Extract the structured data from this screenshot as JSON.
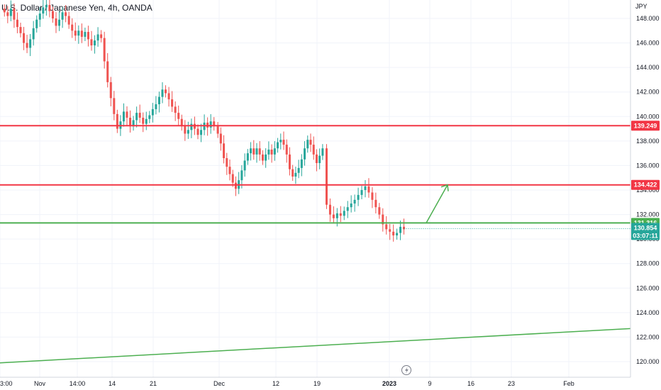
{
  "header": {
    "title": "U.S. Dollar / Japanese Yen, 4h, OANDA"
  },
  "chart_data": {
    "type": "candlestick",
    "title": "U.S. Dollar / Japanese Yen, 4h, OANDA",
    "y_unit": "JPY",
    "ylim": [
      119.0,
      150.5
    ],
    "y_ticks": [
      "148.000",
      "146.000",
      "144.000",
      "142.000",
      "140.000",
      "138.000",
      "136.000",
      "134.000",
      "132.000",
      "130.000",
      "128.000",
      "126.000",
      "124.000",
      "122.000",
      "120.000"
    ],
    "x_ticks": [
      "3:00",
      "Nov",
      "14:00",
      "14",
      "21",
      "Dec",
      "12",
      "19",
      "2023",
      "9",
      "16",
      "23",
      "Feb"
    ],
    "close_series": [
      [
        148.5,
        148.2,
        148.8,
        147.9,
        147.3,
        146.8,
        146.0,
        145.6,
        146.3,
        147.2,
        147.9,
        148.4,
        148.9,
        149.1,
        148.6,
        148.0,
        147.4,
        147.9,
        148.5,
        148.2,
        147.5,
        147.0,
        146.6,
        147.0,
        146.5,
        146.9,
        146.3,
        145.8,
        146.2,
        146.7,
        146.4,
        144.5,
        142.8,
        141.5,
        140.2,
        139.0,
        139.6,
        140.4,
        139.9,
        139.2,
        139.7,
        140.3,
        139.9,
        139.4,
        139.8,
        140.1,
        140.6,
        141.0,
        141.6,
        142.2,
        141.9,
        141.4,
        140.8,
        140.3,
        139.8,
        139.2,
        138.6,
        138.9,
        139.4,
        139.0,
        138.5,
        138.9,
        139.5,
        139.1,
        139.6,
        139.2
      ],
      [
        138.6,
        137.8,
        136.6,
        135.9,
        135.3,
        134.6,
        134.1,
        134.8,
        135.6,
        136.4,
        137.0,
        137.4,
        136.9,
        137.4,
        136.9,
        136.4,
        136.9,
        137.3,
        136.9,
        137.4,
        137.9,
        138.1,
        137.7,
        136.9,
        135.7,
        135.1,
        135.4,
        135.8,
        136.5,
        137.4,
        138.1,
        137.7,
        136.9,
        136.2,
        136.8,
        137.4
      ],
      [
        132.8,
        132.0,
        131.7,
        132.1,
        131.9,
        132.3,
        132.6,
        132.9,
        133.2,
        133.6,
        134.0,
        134.3,
        133.8,
        133.2,
        132.6,
        132.0,
        131.2,
        130.8,
        130.6,
        130.3,
        130.5,
        131.0,
        130.8
      ]
    ],
    "horizontal_levels": [
      {
        "value": 139.249,
        "label": "139.249",
        "color": "#f23645"
      },
      {
        "value": 134.422,
        "label": "134.422",
        "color": "#f23645"
      },
      {
        "value": 131.316,
        "label": "131.316",
        "color": "#4caf50"
      }
    ],
    "trendline": {
      "from": 119.9,
      "to": 122.7,
      "color": "#4caf50"
    },
    "projection": {
      "from": 131.316,
      "to": 134.422,
      "color": "#4caf50"
    },
    "last_price": {
      "value": 130.854,
      "label": "130.854",
      "countdown": "03:07:11",
      "color": "#26a69a"
    },
    "colors": {
      "up": "#26a69a",
      "down": "#ef5350",
      "grid": "#f0f3fa"
    }
  }
}
